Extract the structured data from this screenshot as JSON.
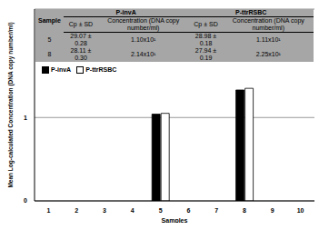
{
  "chart_data": {
    "type": "bar",
    "x_label": "Samples",
    "y_label": "Mean Log-calculated Concentration (DNA copy number/ml)",
    "categories": [
      "1",
      "2",
      "3",
      "4",
      "5",
      "6",
      "7",
      "8",
      "9",
      "10"
    ],
    "series": [
      {
        "name": "P-invA",
        "color": "#000000",
        "values": [
          null,
          null,
          null,
          null,
          1.04,
          null,
          null,
          1.33,
          null,
          null
        ]
      },
      {
        "name": "P-ttrRSBC",
        "color": "#ffffff",
        "values": [
          null,
          null,
          null,
          null,
          1.05,
          null,
          null,
          1.35,
          null,
          null
        ]
      }
    ],
    "ylim": [
      0,
      2.3
    ],
    "yticks": [
      0,
      1
    ],
    "grid": true,
    "legend": "upper left",
    "table": {
      "groups": [
        "P-invA",
        "P-ttrRSBC"
      ],
      "columns": [
        "Sample",
        "Cp ± SD",
        "Concentration (DNA copy number/ml)",
        "Cp ± SD",
        "Concentration (DNA copy number/ml)"
      ],
      "rows": [
        [
          "5",
          "29.07 ± 0.28",
          "1.10x10¹",
          "28.98 ± 0.18",
          "1.11x10¹"
        ],
        [
          "8",
          "28.11 ± 0.30",
          "2.14x10¹",
          "27.94 ± 0.19",
          "2.25x10¹"
        ]
      ]
    }
  }
}
